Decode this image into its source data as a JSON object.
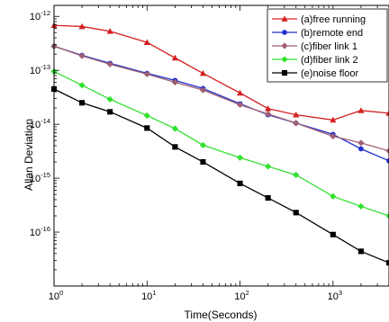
{
  "chart_data": {
    "type": "line",
    "title": "",
    "xlabel": "Time(Seconds)",
    "ylabel": "Allan Deviation",
    "x_scale": "log",
    "y_scale": "log",
    "xlim": [
      1,
      4000
    ],
    "ylim": [
      1e-17,
      1.6e-12
    ],
    "grid": false,
    "legend_position": "top-right",
    "x_ticks": [
      {
        "value": 1,
        "base": "10",
        "exp": "0"
      },
      {
        "value": 10,
        "base": "10",
        "exp": "1"
      },
      {
        "value": 100,
        "base": "10",
        "exp": "2"
      },
      {
        "value": 1000,
        "base": "10",
        "exp": "3"
      }
    ],
    "y_ticks": [
      {
        "value": 1e-16,
        "base": "10",
        "exp": "-16"
      },
      {
        "value": 1e-15,
        "base": "10",
        "exp": "-15"
      },
      {
        "value": 1e-14,
        "base": "10",
        "exp": "-14"
      },
      {
        "value": 1e-13,
        "base": "10",
        "exp": "-13"
      },
      {
        "value": 1e-12,
        "base": "10",
        "exp": "-12"
      }
    ],
    "series": [
      {
        "name": "(a)free running",
        "color": "#d42020",
        "marker": "triangle",
        "x": [
          1,
          2,
          4,
          10,
          20,
          40,
          100,
          200,
          400,
          1000,
          2000,
          4000
        ],
        "y": [
          6.8e-13,
          6.5e-13,
          5.3e-13,
          3.3e-13,
          1.7e-13,
          8.8e-14,
          3.8e-14,
          1.95e-14,
          1.5e-14,
          1.2e-14,
          1.8e-14,
          1.6e-14
        ]
      },
      {
        "name": "(b)remote end",
        "color": "#2030d0",
        "marker": "circle",
        "x": [
          1,
          2,
          4,
          10,
          20,
          40,
          100,
          200,
          400,
          1000,
          2000,
          4000
        ],
        "y": [
          2.8e-13,
          1.9e-13,
          1.35e-13,
          8.8e-14,
          6.5e-14,
          4.6e-14,
          2.4e-14,
          1.5e-14,
          1.05e-14,
          6.5e-15,
          3.5e-15,
          2.1e-15
        ]
      },
      {
        "name": "(c)fiber link 1",
        "color": "#a06070",
        "marker": "diamond",
        "x": [
          1,
          2,
          4,
          10,
          20,
          40,
          100,
          200,
          400,
          1000,
          2000,
          4000
        ],
        "y": [
          2.8e-13,
          1.85e-13,
          1.3e-13,
          8.5e-14,
          6e-14,
          4.3e-14,
          2.3e-14,
          1.55e-14,
          1.05e-14,
          6e-15,
          4.5e-15,
          3.2e-15
        ]
      },
      {
        "name": "(d)fiber link 2",
        "color": "#30e030",
        "marker": "diamond",
        "x": [
          1,
          2,
          4,
          10,
          20,
          40,
          100,
          200,
          400,
          1000,
          2000,
          4000
        ],
        "y": [
          9.5e-14,
          5.3e-14,
          2.9e-14,
          1.45e-14,
          8.3e-15,
          4.1e-15,
          2.4e-15,
          1.65e-15,
          1.15e-15,
          4.6e-16,
          3e-16,
          2e-16
        ]
      },
      {
        "name": "(e)noise floor",
        "color": "#000000",
        "marker": "square",
        "x": [
          1,
          2,
          4,
          10,
          20,
          40,
          100,
          200,
          400,
          1000,
          2000,
          4000
        ],
        "y": [
          4.5e-14,
          2.5e-14,
          1.7e-14,
          8.5e-15,
          3.8e-15,
          2e-15,
          8e-16,
          4.3e-16,
          2.3e-16,
          9e-17,
          4.4e-17,
          2.7e-17
        ]
      }
    ]
  }
}
